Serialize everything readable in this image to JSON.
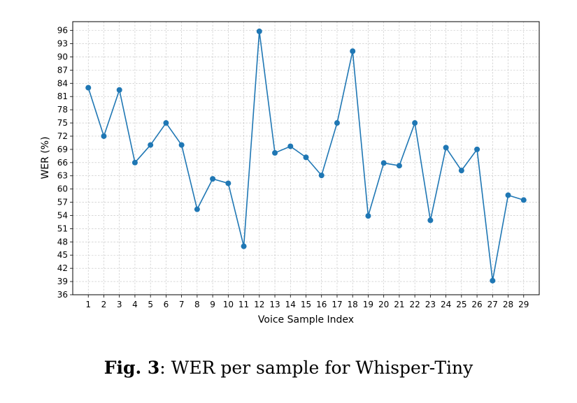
{
  "chart_data": {
    "type": "line",
    "xlabel": "Voice Sample Index",
    "ylabel": "WER (%)",
    "x": [
      1,
      2,
      3,
      4,
      5,
      6,
      7,
      8,
      9,
      10,
      11,
      12,
      13,
      14,
      15,
      16,
      17,
      18,
      19,
      20,
      21,
      22,
      23,
      24,
      25,
      26,
      27,
      28,
      29
    ],
    "values": [
      83.0,
      72.0,
      82.5,
      66.0,
      70.0,
      75.0,
      70.0,
      55.4,
      62.3,
      61.3,
      47.0,
      95.8,
      68.2,
      69.7,
      67.2,
      63.1,
      75.0,
      91.3,
      53.9,
      65.9,
      65.3,
      75.0,
      52.9,
      69.4,
      64.2,
      69.0,
      39.2,
      58.6,
      57.5
    ],
    "xlim": [
      0,
      30
    ],
    "ylim": [
      36,
      98
    ],
    "yticks": [
      36,
      39,
      42,
      45,
      48,
      51,
      54,
      57,
      60,
      63,
      66,
      69,
      72,
      75,
      78,
      81,
      84,
      87,
      90,
      93,
      96
    ],
    "grid": true,
    "series_color": "#1f77b4"
  },
  "caption": {
    "label": "Fig. 3",
    "text": ": WER per sample for Whisper-Tiny"
  }
}
